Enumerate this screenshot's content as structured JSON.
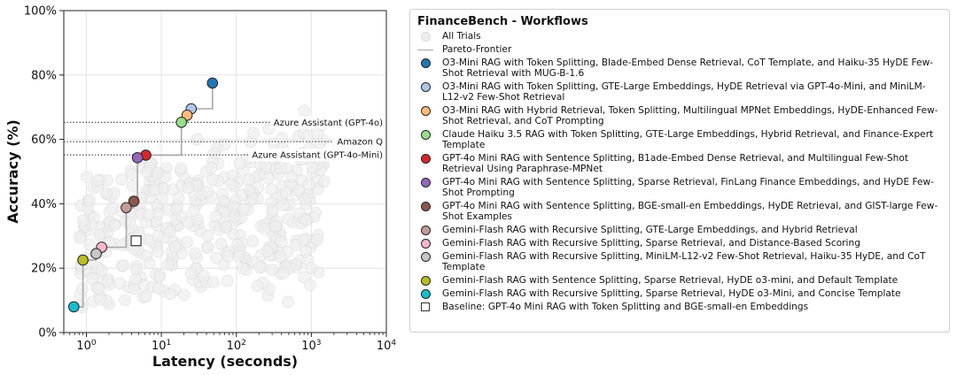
{
  "chart_data": {
    "type": "scatter",
    "title": "",
    "xlabel": "Latency (seconds)",
    "ylabel": "Accuracy (%)",
    "xscale": "log",
    "xlim": [
      0.5,
      10000
    ],
    "ylim": [
      0,
      100
    ],
    "x_ticks": [
      {
        "value": 1,
        "base": "10",
        "exp": "0"
      },
      {
        "value": 10,
        "base": "10",
        "exp": "1"
      },
      {
        "value": 100,
        "base": "10",
        "exp": "2"
      },
      {
        "value": 1000,
        "base": "10",
        "exp": "3"
      },
      {
        "value": 10000,
        "base": "10",
        "exp": "4"
      }
    ],
    "y_ticks": [
      {
        "value": 0,
        "label": "0%"
      },
      {
        "value": 20,
        "label": "20%"
      },
      {
        "value": 40,
        "label": "40%"
      },
      {
        "value": 60,
        "label": "60%"
      },
      {
        "value": 80,
        "label": "80%"
      },
      {
        "value": 100,
        "label": "100%"
      }
    ],
    "grid": true,
    "legend_position": "right",
    "legend_title": "FinanceBench - Workflows",
    "all_trials_label": "All Trials",
    "pareto_label": "Pareto-Frontier",
    "reference_lines": [
      {
        "label": "Azure Assistant (GPT-4o)",
        "y": 65.3
      },
      {
        "label": "Amazon Q",
        "y": 59.3
      },
      {
        "label": "Azure Assistant (GPT-4o-Mini)",
        "y": 55.2
      }
    ],
    "pareto_series": [
      {
        "name": "O3-Mini RAG with Token Splitting, Blade-Embed Dense Retrieval, CoT Template, and Haiku-35 HyDE Few-Shot Retrieval with MUG-B-1.6",
        "x": 48,
        "y": 77.5,
        "color": "#1f77b4"
      },
      {
        "name": "O3-Mini RAG with Token Splitting, GTE-Large Embeddings, HyDE Retrieval via GPT-4o-Mini, and MiniLM-L12-v2 Few-Shot Retrieval",
        "x": 25,
        "y": 69.5,
        "color": "#aec7e8"
      },
      {
        "name": "O3-Mini RAG with Hybrid Retrieval, Token Splitting, Multilingual MPNet Embeddings, HyDE-Enhanced Few-Shot Retrieval, and CoT Prompting",
        "x": 22,
        "y": 67.5,
        "color": "#ffbb78"
      },
      {
        "name": "Claude Haiku 3.5 RAG with Token Splitting, GTE-Large Embeddings, Hybrid Retrieval, and Finance-Expert Template",
        "x": 18.5,
        "y": 65.3,
        "color": "#98df8a"
      },
      {
        "name": "GPT-4o Mini RAG with Sentence Splitting, B1ade-Embed Dense Retrieval, and Multilingual Few-Shot Retrieval Using Paraphrase-MPNet",
        "x": 6.2,
        "y": 55.1,
        "color": "#d62728"
      },
      {
        "name": "GPT-4o Mini RAG with Sentence Splitting, Sparse Retrieval, FinLang Finance Embeddings, and HyDE Few-Shot Prompting",
        "x": 4.8,
        "y": 54.3,
        "color": "#9467bd"
      },
      {
        "name": "GPT-4o Mini RAG with Sentence Splitting, BGE-small-en Embeddings, HyDE Retrieval, and GIST-large Few-Shot Examples",
        "x": 4.3,
        "y": 40.8,
        "color": "#8c564b"
      },
      {
        "name": "Gemini-Flash RAG with Recursive Splitting, GTE-Large Embeddings, and Hybrid Retrieval",
        "x": 3.4,
        "y": 38.8,
        "color": "#c49c94"
      },
      {
        "name": "Gemini-Flash RAG with Recursive Splitting, Sparse Retrieval, and Distance-Based Scoring",
        "x": 1.6,
        "y": 26.5,
        "color": "#f7b6d2"
      },
      {
        "name": "Gemini-Flash RAG with Recursive Splitting, MiniLM-L12-v2 Few-Shot Retrieval, Haiku-35 HyDE, and CoT Template",
        "x": 1.35,
        "y": 24.5,
        "color": "#c7c7c7"
      },
      {
        "name": "Gemini-Flash RAG with Sentence Splitting, Sparse Retrieval, HyDE o3-mini, and Default Template",
        "x": 0.9,
        "y": 22.5,
        "color": "#bcbd22"
      },
      {
        "name": "Gemini-Flash RAG with Recursive Splitting, Sparse Retrieval, HyDE o3-Mini, and Concise Template",
        "x": 0.68,
        "y": 8.0,
        "color": "#17becf"
      }
    ],
    "baseline": {
      "name": "Baseline: GPT-4o Mini RAG with Token Splitting and BGE-small-en Embeddings",
      "x": 4.6,
      "y": 28.5
    },
    "frontier_steps": [
      [
        0.68,
        8.0
      ],
      [
        0.9,
        8.0
      ],
      [
        0.9,
        22.5
      ],
      [
        1.35,
        22.5
      ],
      [
        1.35,
        24.5
      ],
      [
        1.6,
        24.5
      ],
      [
        1.6,
        26.5
      ],
      [
        3.4,
        26.5
      ],
      [
        3.4,
        38.8
      ],
      [
        4.3,
        38.8
      ],
      [
        4.3,
        40.8
      ],
      [
        4.8,
        40.8
      ],
      [
        4.8,
        54.3
      ],
      [
        6.2,
        54.3
      ],
      [
        6.2,
        55.1
      ],
      [
        18.5,
        55.1
      ],
      [
        18.5,
        65.3
      ],
      [
        22,
        65.3
      ],
      [
        22,
        67.5
      ],
      [
        25,
        67.5
      ],
      [
        25,
        69.5
      ],
      [
        48,
        69.5
      ],
      [
        48,
        77.5
      ]
    ]
  }
}
